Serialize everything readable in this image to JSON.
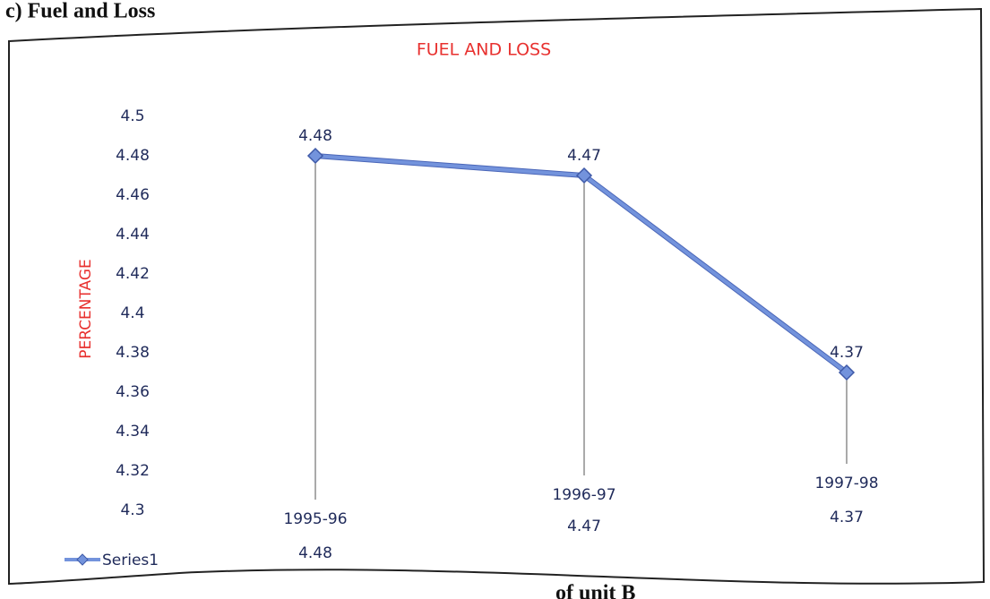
{
  "heading": "c) Fuel and Loss",
  "footer": "of unit B",
  "chart_data": {
    "type": "line",
    "title": "FUEL AND LOSS",
    "y_label": "PERCENTAGE",
    "categories": [
      "1995-96",
      "1996-97",
      "1997-98"
    ],
    "series": [
      {
        "name": "Series1",
        "color": "#7393dc",
        "values": [
          4.48,
          4.47,
          4.37
        ]
      }
    ],
    "ylim": [
      4.3,
      4.5
    ],
    "yticks": [
      4.3,
      4.32,
      4.34,
      4.36,
      4.38,
      4.4,
      4.42,
      4.44,
      4.46,
      4.48,
      4.5
    ],
    "legend": "bottom-left"
  }
}
